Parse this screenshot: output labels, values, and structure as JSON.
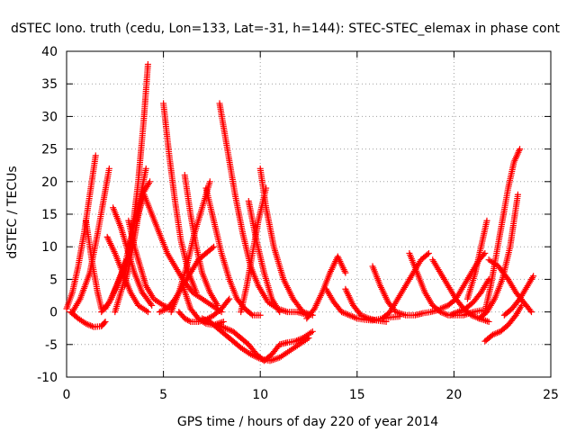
{
  "chart_data": {
    "type": "scatter",
    "title": "dSTEC Iono. truth (cedu, Lon=133, Lat=-31, h=144): STEC-STEC_elemax in phase cont",
    "xlabel": "GPS time / hours of day 220 of year 2014",
    "ylabel": "dSTEC  / TECUs",
    "xlim": [
      0,
      25
    ],
    "ylim": [
      -10,
      40
    ],
    "xticks": [
      0,
      5,
      10,
      15,
      20,
      25
    ],
    "yticks": [
      -10,
      -5,
      0,
      5,
      10,
      15,
      20,
      25,
      30,
      35,
      40
    ],
    "grid": true,
    "marker": "+",
    "color": "#ff0000",
    "series": [
      {
        "x": [
          0.0,
          0.3,
          0.6,
          0.9,
          1.2,
          1.5
        ],
        "y": [
          0.5,
          3,
          7,
          12,
          18,
          24
        ]
      },
      {
        "x": [
          0.3,
          0.7,
          1.2,
          1.6,
          1.9,
          2.2
        ],
        "y": [
          0,
          2,
          6,
          12,
          17,
          22
        ]
      },
      {
        "x": [
          1.0,
          1.3,
          1.6,
          1.8,
          2.0,
          2.3,
          2.7,
          3.1
        ],
        "y": [
          14,
          8,
          3,
          0.5,
          0.5,
          2,
          5,
          8
        ]
      },
      {
        "x": [
          0.2,
          0.6,
          1.0,
          1.4,
          1.8,
          2.0
        ],
        "y": [
          0,
          -1,
          -1.8,
          -2.3,
          -2.2,
          -1.5
        ]
      },
      {
        "x": [
          2.1,
          2.5,
          2.9,
          3.3,
          3.7,
          4.2
        ],
        "y": [
          11.5,
          9,
          6,
          3,
          1,
          0
        ]
      },
      {
        "x": [
          2.4,
          2.8,
          3.1,
          3.5,
          3.9,
          4.4
        ],
        "y": [
          16,
          13,
          10,
          6,
          3,
          1
        ]
      },
      {
        "x": [
          1.8,
          2.2,
          2.6,
          3.0,
          3.3,
          3.7,
          4.1
        ],
        "y": [
          0,
          1.5,
          4,
          7,
          11,
          16,
          22
        ]
      },
      {
        "x": [
          2.5,
          2.9,
          3.3,
          3.7,
          4.0,
          4.2
        ],
        "y": [
          0,
          4,
          10,
          20,
          30,
          38
        ]
      },
      {
        "x": [
          3.2,
          3.5,
          3.8,
          4.1,
          4.5,
          5.0,
          5.4
        ],
        "y": [
          14,
          10,
          7,
          4,
          2,
          1,
          0.5
        ]
      },
      {
        "x": [
          3.0,
          3.3,
          3.6,
          3.9,
          4.3
        ],
        "y": [
          4,
          8,
          13,
          18,
          20
        ]
      },
      {
        "x": [
          3.6,
          4.0,
          4.4,
          4.8,
          5.2,
          5.6,
          6.0,
          6.5,
          7.0,
          7.5,
          8.0
        ],
        "y": [
          14,
          18,
          15,
          12,
          9,
          7,
          5,
          3,
          2,
          1,
          0
        ]
      },
      {
        "x": [
          4.8,
          5.2,
          5.6,
          6.0,
          6.4,
          6.8,
          7.2,
          7.6
        ],
        "y": [
          0,
          0.5,
          2,
          4,
          6,
          8,
          9,
          10
        ]
      },
      {
        "x": [
          5.0,
          5.3,
          5.6,
          5.9,
          6.3,
          6.7
        ],
        "y": [
          32,
          24,
          17,
          11,
          6,
          3
        ]
      },
      {
        "x": [
          6.1,
          6.4,
          6.7,
          7.0,
          7.4,
          7.8
        ],
        "y": [
          21,
          15,
          10,
          6,
          3,
          1
        ]
      },
      {
        "x": [
          5.8,
          6.1,
          6.4,
          6.8,
          7.2,
          7.6,
          8.0,
          8.4
        ],
        "y": [
          0,
          -1,
          -1.5,
          -1.5,
          -1.2,
          -0.5,
          0.5,
          2
        ]
      },
      {
        "x": [
          5.4,
          5.8,
          6.2,
          6.6,
          7.0,
          7.4
        ],
        "y": [
          0,
          3,
          7,
          12,
          16,
          20
        ]
      },
      {
        "x": [
          6.0,
          6.4,
          6.8,
          7.2,
          7.6,
          8.1
        ],
        "y": [
          4,
          0.5,
          -1,
          -1.8,
          -2,
          -1.5
        ]
      },
      {
        "x": [
          7.9,
          8.3,
          8.7,
          9.1,
          9.5,
          9.9,
          10.4,
          10.9,
          11.4,
          11.9,
          12.5
        ],
        "y": [
          32,
          25,
          18,
          12,
          7,
          4,
          1.5,
          0.5,
          0,
          0,
          -0.5
        ]
      },
      {
        "x": [
          7.2,
          7.6,
          8.0,
          8.4,
          8.8,
          9.2,
          9.6,
          10.0
        ],
        "y": [
          19,
          14,
          9,
          5,
          2,
          0.5,
          -0.5,
          -0.5
        ]
      },
      {
        "x": [
          7.0,
          7.4,
          7.8,
          8.2,
          8.6,
          9.0,
          9.5,
          10.0,
          10.5,
          11.0,
          11.5,
          12.0,
          12.5
        ],
        "y": [
          -1,
          -1.5,
          -2.5,
          -3.5,
          -4.5,
          -5.5,
          -6.5,
          -7.2,
          -7.5,
          -7.0,
          -6.0,
          -5.0,
          -4.0
        ]
      },
      {
        "x": [
          7.8,
          8.2,
          8.6,
          9.0,
          9.4,
          9.8,
          10.2,
          10.6,
          11.0,
          11.4,
          11.8,
          12.2,
          12.7
        ],
        "y": [
          -2,
          -2.5,
          -3,
          -4,
          -5,
          -6.5,
          -7.5,
          -6.5,
          -5,
          -4.7,
          -4.5,
          -4,
          -3
        ]
      },
      {
        "x": [
          9.4,
          9.8,
          10.2,
          10.6,
          11.0
        ],
        "y": [
          17,
          11,
          6,
          2,
          0
        ]
      },
      {
        "x": [
          9.0,
          9.3,
          9.6,
          9.9,
          10.3
        ],
        "y": [
          0,
          4,
          9,
          14,
          19
        ]
      },
      {
        "x": [
          10.0,
          10.3,
          10.7,
          11.2,
          11.7,
          12.2,
          12.7
        ],
        "y": [
          22,
          16,
          10,
          5,
          2,
          0,
          -0.5
        ]
      },
      {
        "x": [
          12.4,
          12.8,
          13.2,
          13.6,
          14.0,
          14.4
        ],
        "y": [
          -1,
          0.5,
          3,
          6,
          8.5,
          6
        ]
      },
      {
        "x": [
          13.4,
          13.8,
          14.2,
          14.6,
          15.0,
          15.4,
          15.8,
          16.3,
          16.8,
          17.2
        ],
        "y": [
          3.5,
          1.5,
          0,
          -0.5,
          -1,
          -1.2,
          -1.3,
          -1,
          -0.8,
          -0.7
        ]
      },
      {
        "x": [
          14.4,
          14.8,
          15.2,
          15.6,
          16.0,
          16.5
        ],
        "y": [
          3.5,
          1,
          -0.5,
          -1,
          -1.3,
          -1.5
        ]
      },
      {
        "x": [
          15.8,
          16.2,
          16.6,
          17.0,
          17.5,
          18.0,
          18.4,
          18.8,
          19.2
        ],
        "y": [
          7,
          4,
          1.5,
          0,
          -0.5,
          -0.5,
          -0.2,
          0,
          0.3
        ]
      },
      {
        "x": [
          16.3,
          16.7,
          17.1,
          17.5,
          17.9,
          18.3,
          18.7
        ],
        "y": [
          -1,
          0,
          2,
          4,
          6,
          8,
          9
        ]
      },
      {
        "x": [
          17.7,
          18.1,
          18.5,
          18.9,
          19.3,
          19.7,
          20.1,
          20.5,
          21.0,
          21.5
        ],
        "y": [
          9,
          6,
          3,
          1,
          0,
          -0.5,
          -0.5,
          -0.5,
          0,
          0.3
        ]
      },
      {
        "x": [
          18.9,
          19.3,
          19.7,
          20.1,
          20.5,
          20.9,
          21.3,
          21.8
        ],
        "y": [
          8,
          6,
          4,
          2,
          0.5,
          -0.5,
          -1,
          -1.5
        ]
      },
      {
        "x": [
          19.3,
          19.7,
          20.1,
          20.5,
          20.9,
          21.3,
          21.6
        ],
        "y": [
          0.5,
          1,
          2,
          4,
          6,
          8,
          9
        ]
      },
      {
        "x": [
          19.8,
          20.2,
          20.6,
          21.0,
          21.4,
          21.8
        ],
        "y": [
          -0.5,
          0,
          0.5,
          1.5,
          3,
          5
        ]
      },
      {
        "x": [
          20.7,
          21.1,
          21.4,
          21.7
        ],
        "y": [
          2,
          6,
          10,
          14
        ]
      },
      {
        "x": [
          21.3,
          21.7,
          22.1,
          22.5,
          22.9,
          23.3
        ],
        "y": [
          -1,
          0,
          2,
          5,
          10,
          18
        ]
      },
      {
        "x": [
          21.6,
          21.9,
          22.2,
          22.5,
          22.8,
          23.1,
          23.4
        ],
        "y": [
          0,
          4,
          9,
          14,
          19,
          23,
          25
        ]
      },
      {
        "x": [
          22.6,
          23.0,
          23.4,
          23.8,
          24.1
        ],
        "y": [
          -0.5,
          0.5,
          2,
          4,
          5.5
        ]
      },
      {
        "x": [
          21.6,
          22.0,
          22.4,
          22.8,
          23.2,
          23.5
        ],
        "y": [
          -4.5,
          -3.5,
          -3,
          -2,
          -0.5,
          1
        ]
      },
      {
        "x": [
          21.8,
          22.3,
          22.8,
          23.2,
          23.6,
          24.0
        ],
        "y": [
          8,
          7,
          5,
          3,
          1.5,
          0
        ]
      }
    ]
  }
}
